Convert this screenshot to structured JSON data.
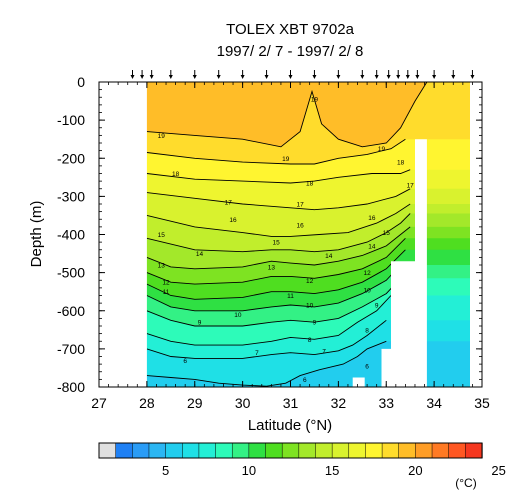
{
  "chart_data": {
    "type": "contour",
    "title": "TOLEX XBT 9702a",
    "subtitle": "1997/ 2/ 7 - 1997/ 2/ 8",
    "xlabel": "Latitude (°N)",
    "ylabel": "Depth (m)",
    "xlim": [
      27,
      35
    ],
    "ylim": [
      -800,
      0
    ],
    "x_ticks": [
      27,
      28,
      29,
      30,
      31,
      32,
      33,
      34,
      35
    ],
    "y_ticks": [
      0,
      -100,
      -200,
      -300,
      -400,
      -500,
      -600,
      -700,
      -800
    ],
    "station_latitudes": [
      27.7,
      27.9,
      28.1,
      28.5,
      29.0,
      29.5,
      30.0,
      30.5,
      31.0,
      31.5,
      32.0,
      32.5,
      32.8,
      33.05,
      33.25,
      33.45,
      33.65,
      34.0,
      34.4,
      34.8
    ],
    "contour_lines": [
      {
        "label": "19",
        "points": [
          [
            28.0,
            -130
          ],
          [
            29.0,
            -140
          ],
          [
            30.0,
            -150
          ],
          [
            30.8,
            -170
          ],
          [
            31.2,
            -130
          ],
          [
            31.45,
            -25
          ],
          [
            31.65,
            -110
          ],
          [
            32.0,
            -150
          ],
          [
            32.5,
            -170
          ],
          [
            33.0,
            -160
          ],
          [
            33.3,
            -120
          ],
          [
            33.6,
            -50
          ],
          [
            33.85,
            0
          ]
        ]
      },
      {
        "label": "18",
        "points": [
          [
            28.0,
            -185
          ],
          [
            29.0,
            -200
          ],
          [
            30.0,
            -210
          ],
          [
            31.0,
            -215
          ],
          [
            31.5,
            -215
          ],
          [
            32.0,
            -200
          ],
          [
            32.6,
            -190
          ],
          [
            33.1,
            -175
          ],
          [
            33.4,
            -150
          ]
        ]
      },
      {
        "label": "17",
        "points": [
          [
            28.0,
            -240
          ],
          [
            29.0,
            -255
          ],
          [
            30.0,
            -260
          ],
          [
            31.0,
            -265
          ],
          [
            31.5,
            -260
          ],
          [
            32.0,
            -250
          ],
          [
            32.7,
            -240
          ],
          [
            33.3,
            -240
          ],
          [
            33.5,
            -230
          ]
        ]
      },
      {
        "label": "16",
        "points": [
          [
            28.0,
            -290
          ],
          [
            29.0,
            -305
          ],
          [
            30.0,
            -320
          ],
          [
            31.0,
            -330
          ],
          [
            31.5,
            -335
          ],
          [
            32.0,
            -330
          ],
          [
            32.6,
            -320
          ],
          [
            33.2,
            -300
          ],
          [
            33.5,
            -280
          ]
        ]
      },
      {
        "label": "15",
        "points": [
          [
            28.0,
            -350
          ],
          [
            29.0,
            -380
          ],
          [
            30.0,
            -395
          ],
          [
            30.6,
            -405
          ],
          [
            31.0,
            -405
          ],
          [
            31.6,
            -400
          ],
          [
            32.2,
            -395
          ],
          [
            32.8,
            -370
          ],
          [
            33.2,
            -345
          ],
          [
            33.5,
            -320
          ]
        ]
      },
      {
        "label": "14",
        "points": [
          [
            28.0,
            -410
          ],
          [
            29.0,
            -440
          ],
          [
            30.0,
            -445
          ],
          [
            30.6,
            -440
          ],
          [
            31.0,
            -440
          ],
          [
            31.5,
            -445
          ],
          [
            32.0,
            -440
          ],
          [
            32.6,
            -420
          ],
          [
            33.0,
            -395
          ],
          [
            33.3,
            -370
          ],
          [
            33.5,
            -345
          ]
        ]
      },
      {
        "label": "13",
        "points": [
          [
            28.0,
            -460
          ],
          [
            28.5,
            -485
          ],
          [
            29.0,
            -490
          ],
          [
            30.0,
            -485
          ],
          [
            30.6,
            -470
          ],
          [
            31.0,
            -475
          ],
          [
            31.5,
            -480
          ],
          [
            32.0,
            -470
          ],
          [
            32.5,
            -455
          ],
          [
            33.0,
            -430
          ],
          [
            33.5,
            -380
          ]
        ]
      },
      {
        "label": "12",
        "points": [
          [
            28.0,
            -500
          ],
          [
            28.5,
            -525
          ],
          [
            29.0,
            -530
          ],
          [
            30.0,
            -525
          ],
          [
            30.6,
            -510
          ],
          [
            31.0,
            -510
          ],
          [
            31.5,
            -515
          ],
          [
            32.0,
            -505
          ],
          [
            32.5,
            -490
          ],
          [
            33.0,
            -460
          ],
          [
            33.4,
            -410
          ]
        ]
      },
      {
        "label": "11",
        "points": [
          [
            28.0,
            -530
          ],
          [
            28.5,
            -560
          ],
          [
            29.0,
            -570
          ],
          [
            30.0,
            -565
          ],
          [
            30.6,
            -550
          ],
          [
            31.0,
            -550
          ],
          [
            31.5,
            -555
          ],
          [
            32.0,
            -545
          ],
          [
            32.5,
            -525
          ],
          [
            33.0,
            -490
          ],
          [
            33.4,
            -440
          ]
        ]
      },
      {
        "label": "10",
        "points": [
          [
            28.0,
            -560
          ],
          [
            28.5,
            -590
          ],
          [
            29.0,
            -600
          ],
          [
            30.0,
            -600
          ],
          [
            30.6,
            -590
          ],
          [
            31.0,
            -585
          ],
          [
            31.5,
            -590
          ],
          [
            32.0,
            -580
          ],
          [
            32.5,
            -555
          ],
          [
            33.0,
            -520
          ],
          [
            33.3,
            -480
          ]
        ]
      },
      {
        "label": "9",
        "points": [
          [
            28.0,
            -600
          ],
          [
            28.5,
            -625
          ],
          [
            29.0,
            -640
          ],
          [
            30.0,
            -640
          ],
          [
            30.6,
            -630
          ],
          [
            31.0,
            -625
          ],
          [
            31.5,
            -630
          ],
          [
            32.0,
            -620
          ],
          [
            32.5,
            -590
          ],
          [
            33.0,
            -555
          ],
          [
            33.3,
            -515
          ]
        ]
      },
      {
        "label": "8",
        "points": [
          [
            28.0,
            -660
          ],
          [
            28.5,
            -680
          ],
          [
            29.0,
            -690
          ],
          [
            30.0,
            -690
          ],
          [
            30.6,
            -680
          ],
          [
            31.0,
            -670
          ],
          [
            31.5,
            -675
          ],
          [
            32.0,
            -665
          ],
          [
            32.4,
            -630
          ],
          [
            32.8,
            -600
          ],
          [
            33.1,
            -560
          ]
        ]
      },
      {
        "label": "7",
        "points": [
          [
            28.0,
            -700
          ],
          [
            28.5,
            -720
          ],
          [
            29.0,
            -725
          ],
          [
            30.0,
            -725
          ],
          [
            30.6,
            -715
          ],
          [
            31.0,
            -710
          ],
          [
            31.5,
            -715
          ],
          [
            32.0,
            -705
          ],
          [
            32.3,
            -690
          ],
          [
            32.6,
            -665
          ],
          [
            33.0,
            -625
          ]
        ]
      },
      {
        "label": "6",
        "points": [
          [
            28.0,
            -770
          ],
          [
            28.5,
            -775
          ],
          [
            29.0,
            -780
          ],
          [
            29.5,
            -790
          ],
          [
            30.0,
            -795
          ],
          [
            30.5,
            -798
          ],
          [
            30.9,
            -790
          ],
          [
            31.2,
            -770
          ],
          [
            31.6,
            -755
          ],
          [
            32.1,
            -740
          ],
          [
            32.4,
            -720
          ],
          [
            32.6,
            -700
          ],
          [
            33.0,
            -680
          ]
        ]
      }
    ],
    "contour_label_positions": [
      [
        28.3,
        -140,
        "19"
      ],
      [
        30.9,
        -200,
        "19"
      ],
      [
        31.5,
        -45,
        "19"
      ],
      [
        32.9,
        -175,
        "19"
      ],
      [
        28.6,
        -240,
        "18"
      ],
      [
        31.4,
        -265,
        "18"
      ],
      [
        33.3,
        -210,
        "18"
      ],
      [
        29.7,
        -315,
        "17"
      ],
      [
        31.2,
        -320,
        "17"
      ],
      [
        33.5,
        -270,
        "17"
      ],
      [
        29.8,
        -360,
        "16"
      ],
      [
        31.2,
        -375,
        "16"
      ],
      [
        32.7,
        -355,
        "16"
      ],
      [
        28.3,
        -400,
        "15"
      ],
      [
        30.7,
        -420,
        "15"
      ],
      [
        33.0,
        -395,
        "15"
      ],
      [
        29.1,
        -450,
        "14"
      ],
      [
        31.8,
        -455,
        "14"
      ],
      [
        32.7,
        -430,
        "14"
      ],
      [
        28.3,
        -480,
        "13"
      ],
      [
        30.6,
        -485,
        "13"
      ],
      [
        28.4,
        -525,
        "12"
      ],
      [
        31.4,
        -520,
        "12"
      ],
      [
        32.6,
        -500,
        "12"
      ],
      [
        28.4,
        -550,
        "11"
      ],
      [
        31.0,
        -560,
        "11"
      ],
      [
        29.9,
        -610,
        "10"
      ],
      [
        31.4,
        -585,
        "10"
      ],
      [
        32.6,
        -545,
        "10"
      ],
      [
        29.1,
        -630,
        "9"
      ],
      [
        31.5,
        -630,
        "9"
      ],
      [
        32.8,
        -585,
        "9"
      ],
      [
        31.4,
        -675,
        "8"
      ],
      [
        32.6,
        -650,
        "8"
      ],
      [
        30.3,
        -710,
        "7"
      ],
      [
        31.7,
        -705,
        "7"
      ],
      [
        28.8,
        -730,
        "6"
      ],
      [
        31.3,
        -780,
        "6"
      ],
      [
        32.6,
        -745,
        "6"
      ]
    ],
    "no_data_regions": [
      [
        [
          27.0,
          0
        ],
        [
          28.0,
          0
        ],
        [
          28.0,
          -800
        ],
        [
          27.0,
          -800
        ]
      ],
      [
        [
          34.75,
          0
        ],
        [
          35.0,
          0
        ],
        [
          35.0,
          -800
        ],
        [
          34.75,
          -800
        ]
      ],
      [
        [
          33.6,
          -150
        ],
        [
          33.85,
          -150
        ],
        [
          33.85,
          -800
        ],
        [
          33.6,
          -800
        ]
      ],
      [
        [
          33.1,
          -470
        ],
        [
          33.6,
          -470
        ],
        [
          33.6,
          -800
        ],
        [
          33.1,
          -800
        ]
      ],
      [
        [
          32.9,
          -700
        ],
        [
          33.1,
          -700
        ],
        [
          33.1,
          -800
        ],
        [
          32.9,
          -800
        ]
      ],
      [
        [
          32.3,
          -775
        ],
        [
          32.55,
          -775
        ],
        [
          32.55,
          -800
        ],
        [
          32.3,
          -800
        ]
      ]
    ],
    "colorbar": {
      "unit": "(°C)",
      "tick_labels": [
        5,
        10,
        15,
        20,
        25
      ],
      "range": [
        2,
        28
      ],
      "colors": [
        "#e0e0e0",
        "#1f80f4",
        "#2a9cf6",
        "#2bb6f3",
        "#22cdee",
        "#1fe0e6",
        "#23efd6",
        "#2dfbb9",
        "#33f185",
        "#2fe043",
        "#4fde20",
        "#7ee322",
        "#a3e82a",
        "#c1ee2c",
        "#d9f22e",
        "#eef52f",
        "#fff530",
        "#ffdc2c",
        "#ffbd28",
        "#ff9d26",
        "#ff7a24",
        "#ff5722",
        "#f5371f"
      ]
    }
  }
}
